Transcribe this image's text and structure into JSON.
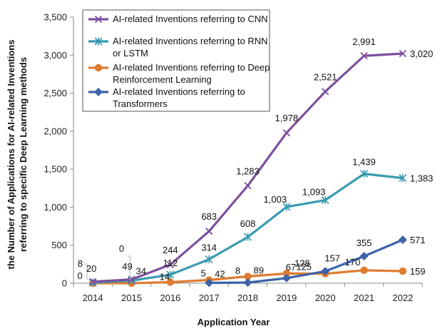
{
  "chart_data": {
    "type": "line",
    "title": "",
    "xlabel": "Application Year",
    "ylabel": "the Number of Applications for AI-related Inventions referring to  specific Deep Learning methods",
    "ylabel_lines": [
      "the Number of Applications for AI-related Inventions",
      "referring to  specific Deep Learning methods"
    ],
    "categories": [
      "2014",
      "2015",
      "2016",
      "2017",
      "2018",
      "2019",
      "2020",
      "2021",
      "2022"
    ],
    "ylim": [
      0,
      3500
    ],
    "yticks": [
      0,
      500,
      1000,
      1500,
      2000,
      2500,
      3000,
      3500
    ],
    "ytick_labels": [
      "0",
      "500",
      "1,000",
      "1,500",
      "2,000",
      "2,500",
      "3,000",
      "3,500"
    ],
    "grid": false,
    "legend_position": "top-left",
    "series": [
      {
        "name": "AI-related Inventions referring to CNN",
        "legend_lines": [
          "AI-related Inventions referring to CNN"
        ],
        "color": "#7B4F9D",
        "marker": "x",
        "values": [
          20,
          49,
          244,
          683,
          1283,
          1978,
          2521,
          2991,
          3020
        ],
        "labels": [
          "20",
          "49",
          "244",
          "683",
          "1,283",
          "1,978",
          "2,521",
          "2,991",
          "3,020"
        ]
      },
      {
        "name": "AI-related Inventions referring to RNN or LSTM",
        "legend_lines": [
          "AI-related Inventions referring to RNN",
          "or LSTM"
        ],
        "color": "#3A9AB0",
        "marker": "star",
        "values": [
          8,
          34,
          112,
          314,
          608,
          1003,
          1093,
          1439,
          1383
        ],
        "labels": [
          "8",
          "34",
          "112",
          "314",
          "608",
          "1,003",
          "1,093",
          "1,439",
          "1,383"
        ]
      },
      {
        "name": "AI-related Inventions referring to Deep Reinforcement Learning",
        "legend_lines": [
          "AI-related Inventions referring to Deep",
          "Reinforcement Learning"
        ],
        "color": "#E07B30",
        "marker": "circle",
        "values": [
          0,
          0,
          14,
          42,
          89,
          128,
          125,
          170,
          159
        ],
        "labels": [
          "0",
          "0",
          "14",
          "42",
          "89",
          "128",
          "125",
          "170",
          "159"
        ]
      },
      {
        "name": "AI-related Inventions referring to Transformers",
        "legend_lines": [
          "AI-related Inventions referring to",
          "Transformers"
        ],
        "color": "#3C64A8",
        "marker": "diamond",
        "start_index": 3,
        "values": [
          null,
          null,
          null,
          5,
          8,
          67,
          157,
          355,
          571
        ],
        "labels": [
          "",
          "",
          "",
          "5",
          "8",
          "67",
          "157",
          "355",
          "571"
        ]
      }
    ]
  }
}
